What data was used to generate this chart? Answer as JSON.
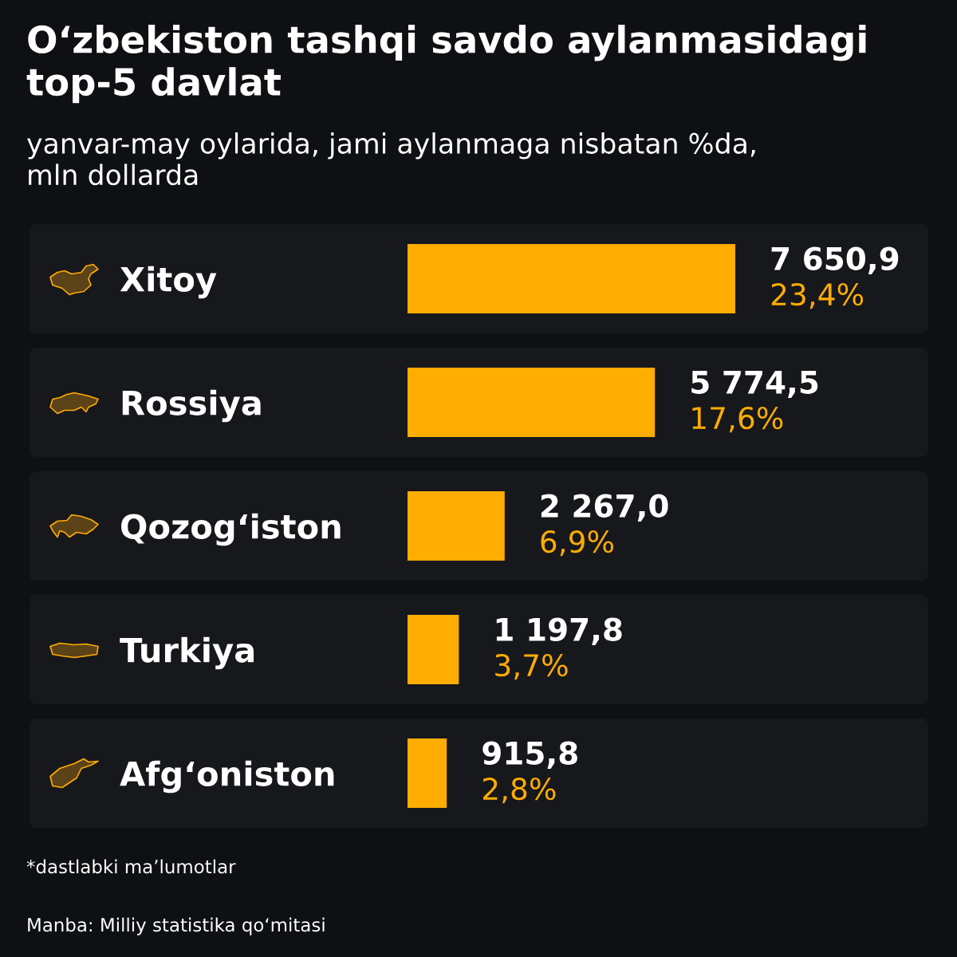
{
  "chart_data": {
    "type": "bar",
    "orientation": "horizontal",
    "title": "Oʻzbekiston tashqi savdo aylanmasidagi\ntop-5 davlat",
    "subtitle": "yanvar-may oylarida, jami aylanmaga nisbatan %da,\nmln dollarda",
    "categories": [
      "Xitoy",
      "Rossiya",
      "Qozogʻiston",
      "Turkiya",
      "Afgʻoniston"
    ],
    "values": [
      7650.9,
      5774.5,
      2267.0,
      1197.8,
      915.8
    ],
    "value_labels": [
      "7 650,9",
      "5 774,5",
      "2 267,0",
      "1 197,8",
      "915,8"
    ],
    "color": "#ffad00",
    "tick_labels": "y",
    "annotations": [
      {
        "text": "23,4%",
        "x": 7650.9,
        "y": "Xitoy"
      },
      {
        "text": "17,6%",
        "x": 5774.5,
        "y": "Rossiya"
      },
      {
        "text": "6,9%",
        "x": 2267.0,
        "y": "Qozogʻiston"
      },
      {
        "text": "3,7%",
        "x": 1197.8,
        "y": "Turkiya"
      },
      {
        "text": "2,8%",
        "x": 915.8,
        "y": "Afgʻoniston"
      },
      "*dastlabki maʼlumotlar",
      "Manba: Milliy statistika qoʻmitasi"
    ]
  }
}
